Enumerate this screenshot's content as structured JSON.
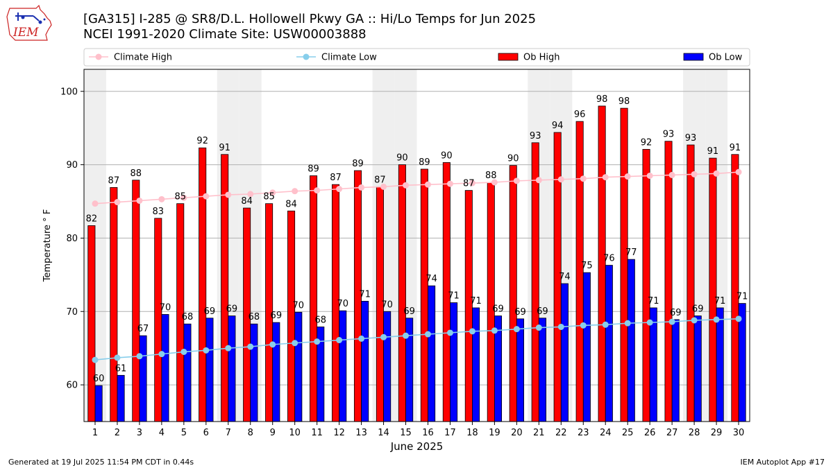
{
  "header": {
    "title_line1": "[GA315] I-285 @ SR8/D.L. Hollowell Pkwy  GA :: Hi/Lo Temps for Jun 2025",
    "title_line2": "NCEI 1991-2020 Climate Site: USW00003888",
    "logo_text": "IEM"
  },
  "footer": {
    "left": "Generated at 19 Jul 2025 11:54 PM CDT in 0.44s",
    "right": "IEM Autoplot App #17"
  },
  "colors": {
    "ob_high": "#ff0000",
    "ob_low": "#0000ff",
    "climate_high": "#ffc0cb",
    "climate_low": "#87ceeb",
    "weekend_shade": "#efefef",
    "grid": "#b0b0b0"
  },
  "chart_data": {
    "type": "bar",
    "xlabel": "June 2025",
    "ylabel": "Temperature ° F",
    "ylim": [
      55,
      103
    ],
    "yticks": [
      60,
      70,
      80,
      90,
      100
    ],
    "grid": "horizontal",
    "legend_position": "top",
    "categories": [
      1,
      2,
      3,
      4,
      5,
      6,
      7,
      8,
      9,
      10,
      11,
      12,
      13,
      14,
      15,
      16,
      17,
      18,
      19,
      20,
      21,
      22,
      23,
      24,
      25,
      26,
      27,
      28,
      29,
      30
    ],
    "shaded_days": [
      1,
      7,
      8,
      14,
      15,
      21,
      22,
      28,
      29
    ],
    "series": [
      {
        "name": "Climate High",
        "kind": "line",
        "values": [
          84.7,
          84.9,
          85.1,
          85.3,
          85.5,
          85.7,
          85.9,
          86.0,
          86.2,
          86.4,
          86.5,
          86.7,
          86.9,
          87.0,
          87.2,
          87.3,
          87.4,
          87.5,
          87.6,
          87.8,
          87.9,
          88.0,
          88.1,
          88.3,
          88.4,
          88.5,
          88.6,
          88.7,
          88.8,
          89.0
        ]
      },
      {
        "name": "Climate Low",
        "kind": "line",
        "values": [
          63.4,
          63.7,
          63.9,
          64.2,
          64.5,
          64.7,
          65.0,
          65.2,
          65.5,
          65.7,
          65.9,
          66.1,
          66.3,
          66.5,
          66.7,
          66.9,
          67.1,
          67.3,
          67.4,
          67.6,
          67.8,
          67.9,
          68.1,
          68.2,
          68.4,
          68.5,
          68.6,
          68.8,
          68.9,
          69.0
        ]
      },
      {
        "name": "Ob High",
        "kind": "bar",
        "values": [
          81.7,
          86.9,
          87.9,
          82.7,
          84.7,
          92.3,
          91.4,
          84.1,
          84.7,
          83.7,
          88.5,
          87.3,
          89.2,
          87.0,
          90.0,
          89.4,
          90.3,
          86.5,
          87.6,
          89.9,
          93.0,
          94.4,
          95.9,
          98.0,
          97.7,
          92.1,
          93.2,
          92.7,
          90.9,
          91.4
        ],
        "labels": [
          82,
          87,
          88,
          83,
          85,
          92,
          91,
          84,
          85,
          84,
          89,
          87,
          89,
          87,
          90,
          89,
          90,
          87,
          88,
          90,
          93,
          94,
          96,
          98,
          98,
          92,
          93,
          93,
          91,
          91
        ]
      },
      {
        "name": "Ob Low",
        "kind": "bar",
        "values": [
          59.9,
          61.3,
          66.7,
          69.6,
          68.3,
          69.1,
          69.4,
          68.3,
          68.5,
          69.9,
          67.9,
          70.1,
          71.4,
          70.0,
          69.1,
          73.5,
          71.2,
          70.5,
          69.4,
          69.0,
          69.1,
          73.8,
          75.3,
          76.3,
          77.1,
          70.5,
          68.9,
          69.4,
          70.5,
          71.1
        ],
        "labels": [
          60,
          61,
          67,
          70,
          68,
          69,
          69,
          68,
          69,
          70,
          68,
          70,
          71,
          70,
          69,
          74,
          71,
          71,
          69,
          69,
          69,
          74,
          75,
          76,
          77,
          71,
          69,
          69,
          71,
          71
        ]
      }
    ]
  }
}
